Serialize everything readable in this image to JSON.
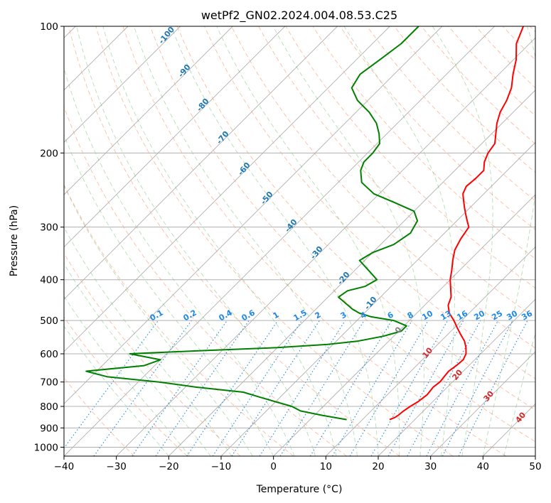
{
  "chart_data": {
    "type": "line",
    "title": "wetPf2_GN02.2024.004.08.53.C25",
    "xlabel": "Temperature (°C)",
    "ylabel": "Pressure (hPa)",
    "xlim": [
      -40,
      50
    ],
    "ylim": [
      1050,
      100
    ],
    "yscale": "log",
    "skew": "skew-T log-P",
    "grid": true,
    "x_ticks": [
      -40,
      -30,
      -20,
      -10,
      0,
      10,
      20,
      30,
      40,
      50
    ],
    "y_ticks": [
      100,
      200,
      300,
      400,
      500,
      600,
      700,
      800,
      900,
      1000
    ],
    "colors": {
      "temperature": "#ff0000",
      "dewpoint": "#008000",
      "dry_adiabats": "#ffa07a",
      "moist_adiabats": "#2ca02c",
      "mixing_ratio": "#1e88e5",
      "isotherm_labels": "#1f77b4",
      "warm_isotherm_labels": "#d62728",
      "grid": "#b0b0b0"
    },
    "series": [
      {
        "role": "temperature",
        "points": [
          [
            15.2,
            860
          ],
          [
            15.8,
            850
          ],
          [
            16.0,
            840
          ],
          [
            16.2,
            820
          ],
          [
            16.6,
            800
          ],
          [
            17.2,
            780
          ],
          [
            17.6,
            750
          ],
          [
            17.3,
            720
          ],
          [
            17.6,
            700
          ],
          [
            17.4,
            680
          ],
          [
            17.2,
            660
          ],
          [
            17.6,
            640
          ],
          [
            17.8,
            620
          ],
          [
            17.2,
            600
          ],
          [
            16.0,
            580
          ],
          [
            14.5,
            560
          ],
          [
            12.5,
            540
          ],
          [
            10.5,
            520
          ],
          [
            8.5,
            500
          ],
          [
            6.2,
            480
          ],
          [
            4.5,
            460
          ],
          [
            3.5,
            440
          ],
          [
            1.8,
            420
          ],
          [
            0.0,
            400
          ],
          [
            -1.5,
            380
          ],
          [
            -3.2,
            360
          ],
          [
            -4.8,
            340
          ],
          [
            -5.8,
            320
          ],
          [
            -6.5,
            300
          ],
          [
            -8.0,
            290
          ],
          [
            -9.5,
            280
          ],
          [
            -11.0,
            270
          ],
          [
            -12.5,
            260
          ],
          [
            -14.0,
            250
          ],
          [
            -14.8,
            240
          ],
          [
            -14.5,
            230
          ],
          [
            -14.5,
            220
          ],
          [
            -16.0,
            210
          ],
          [
            -17.0,
            200
          ],
          [
            -17.5,
            190
          ],
          [
            -19.2,
            180
          ],
          [
            -21.0,
            170
          ],
          [
            -22.5,
            160
          ],
          [
            -23.5,
            150
          ],
          [
            -25.0,
            140
          ],
          [
            -27.3,
            130
          ],
          [
            -29.5,
            120
          ],
          [
            -32.5,
            110
          ],
          [
            -34.5,
            100
          ]
        ]
      },
      {
        "role": "dewpoint",
        "points": [
          [
            7.0,
            860
          ],
          [
            1.5,
            840
          ],
          [
            -3.5,
            820
          ],
          [
            -6.0,
            800
          ],
          [
            -10.0,
            780
          ],
          [
            -14.0,
            760
          ],
          [
            -18.0,
            740
          ],
          [
            -28.0,
            720
          ],
          [
            -36.0,
            700
          ],
          [
            -47.0,
            680
          ],
          [
            -52.0,
            660
          ],
          [
            -42.0,
            640
          ],
          [
            -40.0,
            620
          ],
          [
            -47.0,
            600
          ],
          [
            -34.5,
            590
          ],
          [
            -20.0,
            580
          ],
          [
            -11.0,
            570
          ],
          [
            -6.0,
            560
          ],
          [
            -2.0,
            545
          ],
          [
            0.5,
            530
          ],
          [
            0.5,
            515
          ],
          [
            -3.0,
            500
          ],
          [
            -8.0,
            490
          ],
          [
            -11.0,
            480
          ],
          [
            -13.0,
            470
          ],
          [
            -18.0,
            440
          ],
          [
            -17.5,
            425
          ],
          [
            -15.0,
            415
          ],
          [
            -14.0,
            400
          ],
          [
            -16.5,
            385
          ],
          [
            -21.0,
            360
          ],
          [
            -20.0,
            345
          ],
          [
            -17.5,
            330
          ],
          [
            -16.5,
            310
          ],
          [
            -17.5,
            290
          ],
          [
            -20.0,
            275
          ],
          [
            -25.5,
            262
          ],
          [
            -31.0,
            250
          ],
          [
            -35.5,
            235
          ],
          [
            -38.0,
            220
          ],
          [
            -39.0,
            210
          ],
          [
            -39.0,
            200
          ],
          [
            -39.5,
            190
          ],
          [
            -41.5,
            180
          ],
          [
            -44.0,
            170
          ],
          [
            -47.5,
            160
          ],
          [
            -52.0,
            150
          ],
          [
            -55.5,
            140
          ],
          [
            -56.5,
            130
          ],
          [
            -55.5,
            120
          ],
          [
            -54.5,
            110
          ],
          [
            -54.5,
            100
          ]
        ]
      }
    ],
    "isotherm_labels": [
      {
        "text": "-100",
        "t": -100
      },
      {
        "text": "-90",
        "t": -90
      },
      {
        "text": "-80",
        "t": -80
      },
      {
        "text": "-70",
        "t": -70
      },
      {
        "text": "-60",
        "t": -60
      },
      {
        "text": "-50",
        "t": -50
      },
      {
        "text": "-40",
        "t": -40
      },
      {
        "text": "-30",
        "t": -30
      },
      {
        "text": "-20",
        "t": -20
      },
      {
        "text": "-10",
        "t": -10
      }
    ],
    "warm_isotherm_labels": [
      {
        "text": "0",
        "t": 0
      },
      {
        "text": "10",
        "t": 10
      },
      {
        "text": "20",
        "t": 20
      },
      {
        "text": "30",
        "t": 30
      },
      {
        "text": "40",
        "t": 40
      }
    ],
    "mixing_ratio_labels": [
      "0.1",
      "0.2",
      "0.4",
      "0.6",
      "1",
      "1.5",
      "2",
      "3",
      "4",
      "6",
      "8",
      "10",
      "13",
      "16",
      "20",
      "25",
      "30",
      "36"
    ]
  }
}
